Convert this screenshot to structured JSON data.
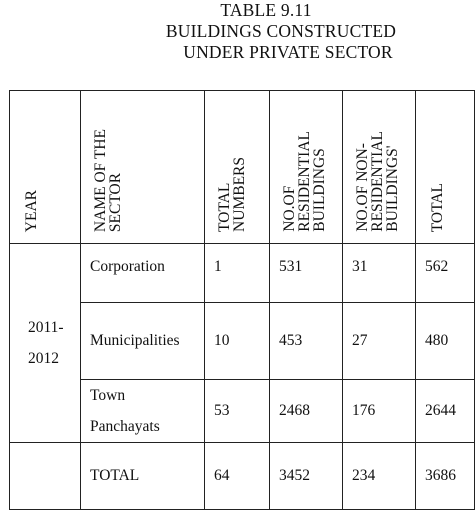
{
  "title": {
    "number": "TABLE 9.11",
    "line2": "BUILDINGS CONSTRUCTED",
    "line3": "UNDER PRIVATE SECTOR"
  },
  "headers": {
    "year": "YEAR",
    "sector": "NAME OF THE\nSECTOR",
    "total_numbers": "TOTAL\nNUMBERS",
    "residential": "NO.OF\nRESIDENTIAL\nBUILDINGS",
    "non_residential": "NO.OF NON-\nRESIDENTIAL\nBUILDINGS'",
    "total": "TOTAL"
  },
  "year": {
    "line1": "2011-",
    "line2": "2012"
  },
  "rows": [
    {
      "sector": "Corporation",
      "total_numbers": "1",
      "residential": "531",
      "non_residential": "31",
      "total": "562"
    },
    {
      "sector": "Municipalities",
      "total_numbers": "10",
      "residential": "453",
      "non_residential": "27",
      "total": "480"
    },
    {
      "sector_line1": "Town",
      "sector_line2": "Panchayats",
      "total_numbers": "53",
      "residential": "2468",
      "non_residential": "176",
      "total": "2644"
    }
  ],
  "totals": {
    "label": "TOTAL",
    "total_numbers": "64",
    "residential": "3452",
    "non_residential": "234",
    "total": "3686"
  }
}
